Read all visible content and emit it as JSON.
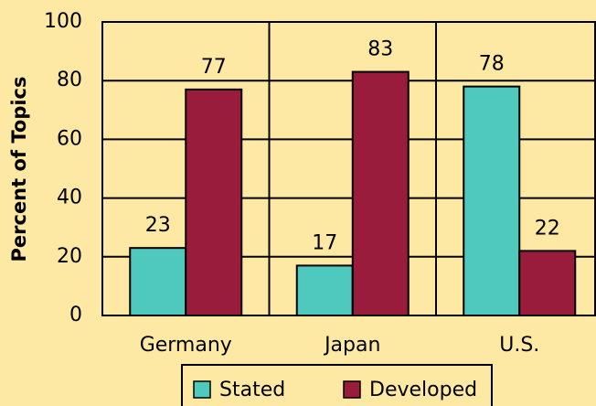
{
  "chart_data": {
    "type": "bar",
    "y_axis_label": "Percent of Topics",
    "categories": [
      "Germany",
      "Japan",
      "U.S."
    ],
    "series": [
      {
        "name": "Stated",
        "color": "#4fc8be",
        "values": [
          23,
          17,
          78
        ]
      },
      {
        "name": "Developed",
        "color": "#9a1c3c",
        "values": [
          77,
          83,
          22
        ]
      }
    ],
    "ylim": [
      0,
      100
    ],
    "yticks": [
      0,
      20,
      40,
      60,
      80,
      100
    ],
    "grid": true,
    "legend": "bottom"
  }
}
